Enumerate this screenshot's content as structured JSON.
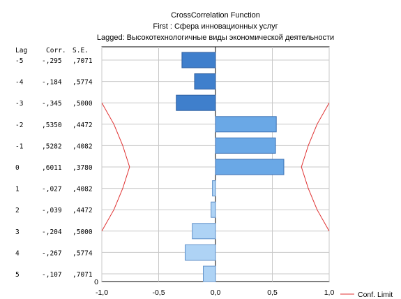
{
  "chart_data": {
    "type": "bar",
    "orientation": "horizontal",
    "title": "CrossCorrelation Function",
    "subtitle1": "First : Сфера инновационных услуг",
    "subtitle2": "Lagged: Высокотехнологичные виды экономической деятельности",
    "table_headers": {
      "lag": "Lag",
      "corr": "Corr.",
      "se": "S.E."
    },
    "rows": [
      {
        "lag": "-5",
        "corr_label": "-,295",
        "se_label": ",7071",
        "corr": -0.295,
        "se": 0.7071
      },
      {
        "lag": "-4",
        "corr_label": "-,184",
        "se_label": ",5774",
        "corr": -0.184,
        "se": 0.5774
      },
      {
        "lag": "-3",
        "corr_label": "-,345",
        "se_label": ",5000",
        "corr": -0.345,
        "se": 0.5
      },
      {
        "lag": "-2",
        "corr_label": ",5350",
        "se_label": ",4472",
        "corr": 0.535,
        "se": 0.4472
      },
      {
        "lag": "-1",
        "corr_label": ",5282",
        "se_label": ",4082",
        "corr": 0.5282,
        "se": 0.4082
      },
      {
        "lag": "0",
        "corr_label": ",6011",
        "se_label": ",3780",
        "corr": 0.6011,
        "se": 0.378
      },
      {
        "lag": "1",
        "corr_label": "-,027",
        "se_label": ",4082",
        "corr": -0.027,
        "se": 0.4082
      },
      {
        "lag": "2",
        "corr_label": "-,039",
        "se_label": ",4472",
        "corr": -0.039,
        "se": 0.4472
      },
      {
        "lag": "3",
        "corr_label": "-,204",
        "se_label": ",5000",
        "corr": -0.204,
        "se": 0.5
      },
      {
        "lag": "4",
        "corr_label": "-,267",
        "se_label": ",5774",
        "corr": -0.267,
        "se": 0.5774
      },
      {
        "lag": "5",
        "corr_label": "-,107",
        "se_label": ",7071",
        "corr": -0.107,
        "se": 0.7071
      }
    ],
    "conf_limit": {
      "upper": [
        1.414,
        1.155,
        1.0,
        0.894,
        0.816,
        0.756,
        0.816,
        0.894,
        1.0,
        1.155,
        1.414
      ]
    },
    "x_ticks": [
      {
        "value": -1.0,
        "label": "-1,0"
      },
      {
        "value": -0.5,
        "label": "-0,5"
      },
      {
        "value": 0.0,
        "label": "0,0"
      },
      {
        "value": 0.5,
        "label": "0,5"
      },
      {
        "value": 1.0,
        "label": "1,0"
      }
    ],
    "y_zero_label": "0",
    "xlim": [
      -1.0,
      1.0
    ],
    "legend": {
      "label": "Conf. Limit",
      "position": "bottom-right"
    },
    "grid": true,
    "colors": {
      "bar_top": "#3f7fcc",
      "bar_top_border": "#2c5d9e",
      "bar_mid": "#6aa8e6",
      "bar_mid_border": "#3d72b5",
      "bar_bottom": "#aed3f5",
      "bar_bottom_border": "#5d8fc8",
      "conf_line": "#e03030",
      "grid": "#c8c8c8"
    }
  }
}
